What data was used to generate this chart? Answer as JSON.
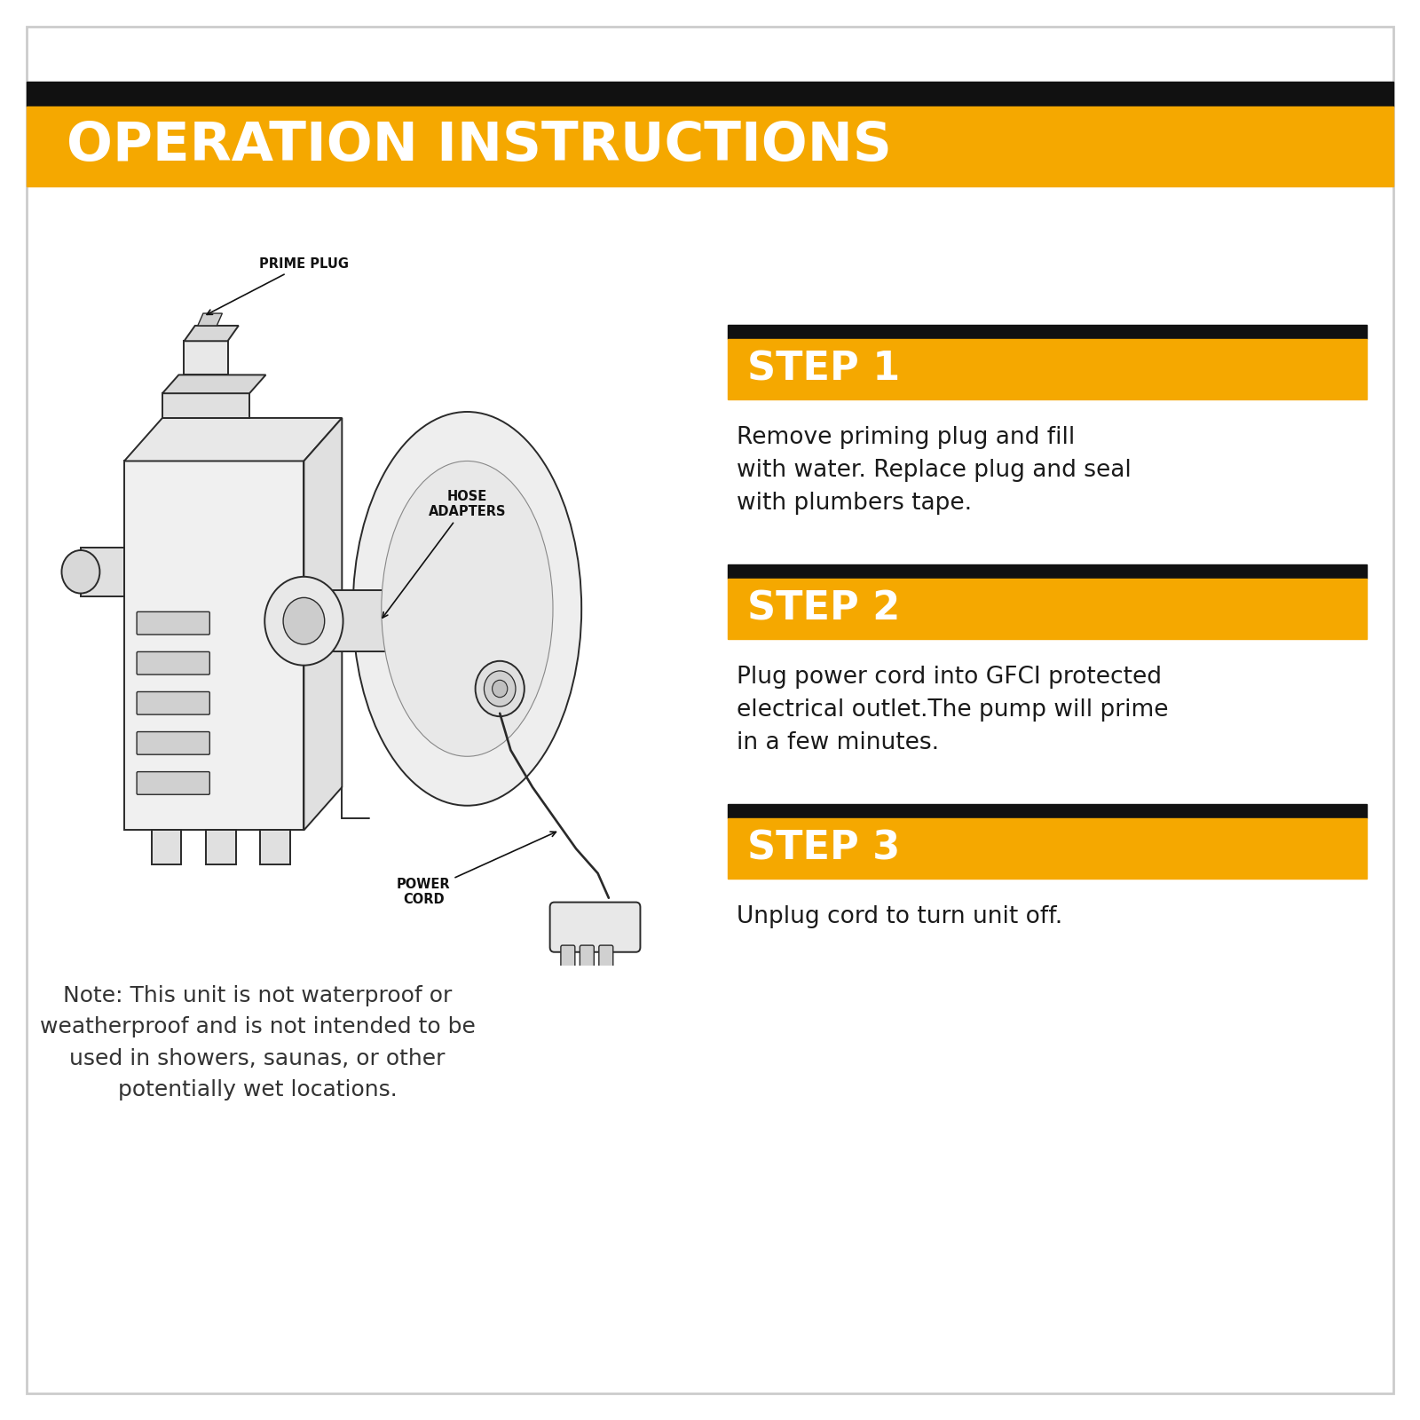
{
  "title": "OPERATION INSTRUCTIONS",
  "title_bg_color": "#F5A800",
  "title_text_color": "#FFFFFF",
  "title_bar_top_color": "#111111",
  "background_color": "#FFFFFF",
  "step_bg_color": "#F5A800",
  "step_bar_top_color": "#111111",
  "step_text_color": "#FFFFFF",
  "body_text_color": "#1a1a1a",
  "steps": [
    {
      "label": "STEP 1",
      "description": "Remove priming plug and fill\nwith water. Replace plug and seal\nwith plumbers tape."
    },
    {
      "label": "STEP 2",
      "description": "Plug power cord into GFCI protected\nelectrical outlet.The pump will prime\nin a few minutes."
    },
    {
      "label": "STEP 3",
      "description": "Unplug cord to turn unit off."
    }
  ],
  "note_text": "Note: This unit is not waterproof or\nweatherproof and is not intended to be\nused in showers, saunas, or other\npotentially wet locations.",
  "note_text_color": "#333333",
  "border_color": "#cccccc"
}
